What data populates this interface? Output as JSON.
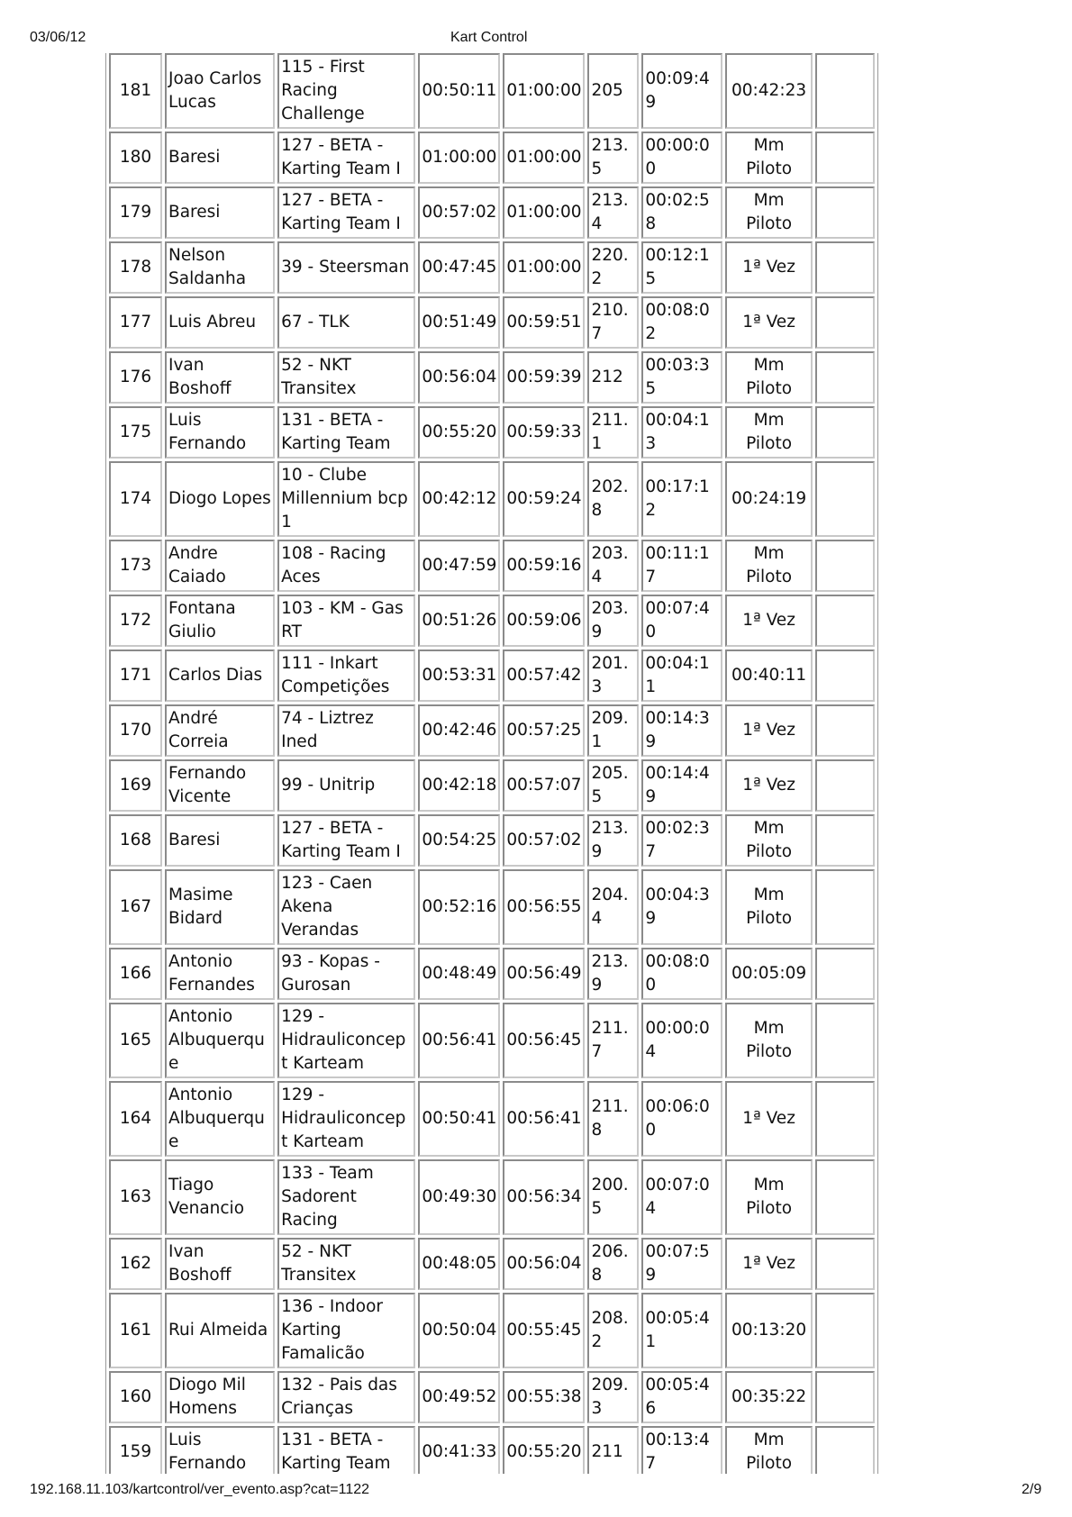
{
  "header": {
    "date": "03/06/12",
    "title": "Kart Control"
  },
  "table": {
    "rows": [
      [
        "181",
        "Joao Carlos Lucas",
        "115 - First Racing Challenge",
        "00:50:11",
        "01:00:00",
        "205",
        "00:09:49",
        "00:42:23"
      ],
      [
        "180",
        "Baresi",
        "127 - BETA - Karting Team I",
        "01:00:00",
        "01:00:00",
        "213.5",
        "00:00:00",
        "Mm Piloto"
      ],
      [
        "179",
        "Baresi",
        "127 - BETA - Karting Team I",
        "00:57:02",
        "01:00:00",
        "213.4",
        "00:02:58",
        "Mm Piloto"
      ],
      [
        "178",
        "Nelson Saldanha",
        "39 - Steersman",
        "00:47:45",
        "01:00:00",
        "220.2",
        "00:12:15",
        "1ª Vez"
      ],
      [
        "177",
        "Luis Abreu",
        "67 - TLK",
        "00:51:49",
        "00:59:51",
        "210.7",
        "00:08:02",
        "1ª Vez"
      ],
      [
        "176",
        "Ivan Boshoff",
        "52 - NKT Transitex",
        "00:56:04",
        "00:59:39",
        "212",
        "00:03:35",
        "Mm Piloto"
      ],
      [
        "175",
        "Luis Fernando",
        "131 - BETA - Karting Team",
        "00:55:20",
        "00:59:33",
        "211.1",
        "00:04:13",
        "Mm Piloto"
      ],
      [
        "174",
        "Diogo Lopes",
        "10 - Clube Millennium bcp 1",
        "00:42:12",
        "00:59:24",
        "202.8",
        "00:17:12",
        "00:24:19"
      ],
      [
        "173",
        "Andre Caiado",
        "108 - Racing Aces",
        "00:47:59",
        "00:59:16",
        "203.4",
        "00:11:17",
        "Mm Piloto"
      ],
      [
        "172",
        "Fontana Giulio",
        "103 - KM - Gas RT",
        "00:51:26",
        "00:59:06",
        "203.9",
        "00:07:40",
        "1ª Vez"
      ],
      [
        "171",
        "Carlos Dias",
        "111 - Inkart Competições",
        "00:53:31",
        "00:57:42",
        "201.3",
        "00:04:11",
        "00:40:11"
      ],
      [
        "170",
        "André Correia",
        "74 - Liztrez Ined",
        "00:42:46",
        "00:57:25",
        "209.1",
        "00:14:39",
        "1ª Vez"
      ],
      [
        "169",
        "Fernando Vicente",
        "99 - Unitrip",
        "00:42:18",
        "00:57:07",
        "205.5",
        "00:14:49",
        "1ª Vez"
      ],
      [
        "168",
        "Baresi",
        "127 - BETA - Karting Team I",
        "00:54:25",
        "00:57:02",
        "213.9",
        "00:02:37",
        "Mm Piloto"
      ],
      [
        "167",
        "Masime Bidard",
        "123 - Caen Akena Verandas",
        "00:52:16",
        "00:56:55",
        "204.4",
        "00:04:39",
        "Mm Piloto"
      ],
      [
        "166",
        "Antonio Fernandes",
        "93 - Kopas - Gurosan",
        "00:48:49",
        "00:56:49",
        "213.9",
        "00:08:00",
        "00:05:09"
      ],
      [
        "165",
        "Antonio Albuquerque",
        "129 - Hidrauliconcept Karteam",
        "00:56:41",
        "00:56:45",
        "211.7",
        "00:00:04",
        "Mm Piloto"
      ],
      [
        "164",
        "Antonio Albuquerque",
        "129 - Hidrauliconcept Karteam",
        "00:50:41",
        "00:56:41",
        "211.8",
        "00:06:00",
        "1ª Vez"
      ],
      [
        "163",
        "Tiago Venancio",
        "133 - Team Sadorent Racing",
        "00:49:30",
        "00:56:34",
        "200.5",
        "00:07:04",
        "Mm Piloto"
      ],
      [
        "162",
        "Ivan Boshoff",
        "52 - NKT Transitex",
        "00:48:05",
        "00:56:04",
        "206.8",
        "00:07:59",
        "1ª Vez"
      ],
      [
        "161",
        "Rui Almeida",
        "136 - Indoor Karting Famalicão",
        "00:50:04",
        "00:55:45",
        "208.2",
        "00:05:41",
        "00:13:20"
      ],
      [
        "160",
        "Diogo Mil Homens",
        "132 - Pais das Crianças",
        "00:49:52",
        "00:55:38",
        "209.3",
        "00:05:46",
        "00:35:22"
      ],
      [
        "159",
        "Luis Fernando",
        "131 - BETA - Karting Team",
        "00:41:33",
        "00:55:20",
        "211",
        "00:13:47",
        "Mm Piloto"
      ]
    ]
  },
  "footer": {
    "url": "192.168.11.103/kartcontrol/ver_evento.asp?cat=1122",
    "page": "2/9"
  }
}
